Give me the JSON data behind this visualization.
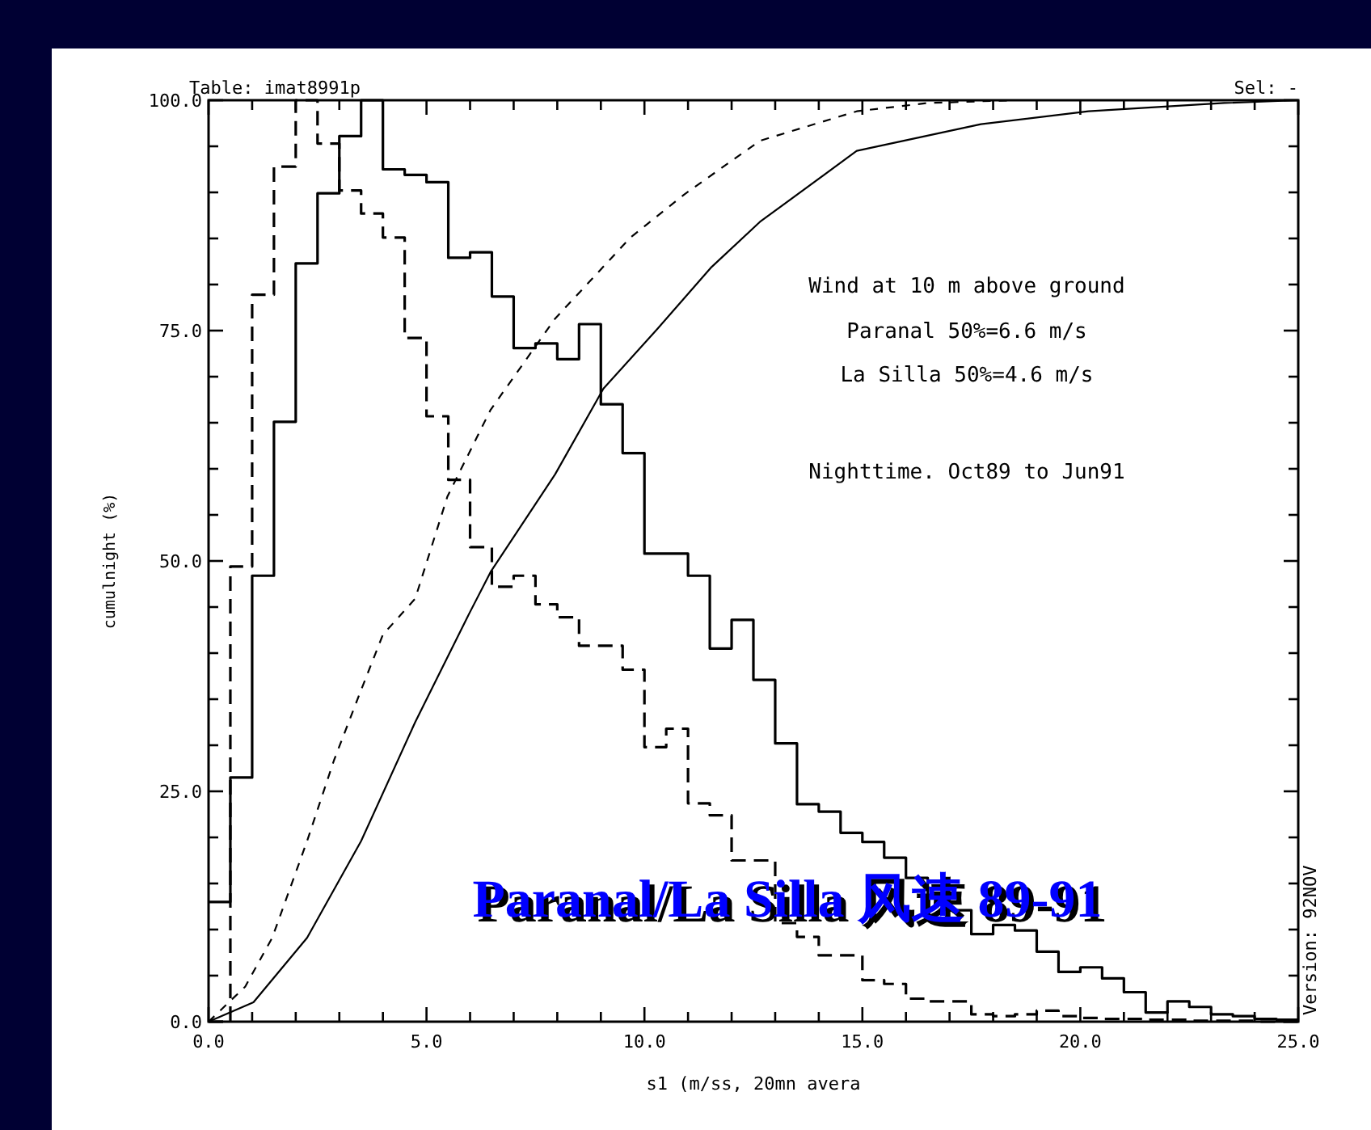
{
  "chart_data": {
    "type": "line",
    "title": "Paranal/La Silla 风速 89-91",
    "xlabel": "s1 (m/ss, 20mn avera",
    "ylabel": "cumulnight (%)",
    "annotations": [
      "Table: imat8991p",
      "Sel: -",
      "Wind at 10 m above ground",
      "Paranal 50%=6.6 m/s",
      "La Silla 50%=4.6 m/s",
      "Nighttime. Oct89 to Jun91",
      "Version: 92NOV"
    ],
    "series": [
      {
        "type": "step",
        "color": "#000000",
        "line_style": "solid",
        "x": [
          0,
          0.5,
          1,
          1.5,
          2,
          2.5,
          3,
          3.5,
          4,
          4.5,
          5,
          5.5,
          6,
          6.5,
          7,
          7.5,
          8,
          8.5,
          9,
          9.5,
          10,
          10.5,
          11,
          11.5,
          12,
          12.5,
          13,
          13.5,
          14,
          14.5,
          15,
          15.5,
          16,
          16.5,
          17,
          17.5,
          18,
          18.5,
          19,
          19.5,
          20,
          20.5,
          21,
          21.5,
          22,
          22.5,
          23,
          23.5,
          24,
          24.5,
          25
        ],
        "values": [
          13,
          26.5,
          48.4,
          65.1,
          82.3,
          89.9,
          96.1,
          100,
          92.5,
          91.9,
          91.1,
          82.9,
          83.5,
          78.7,
          73.1,
          73.6,
          71.9,
          75.7,
          67.0,
          61.7,
          50.8,
          50.8,
          48.4,
          40.5,
          43.6,
          37.1,
          30.2,
          23.6,
          22.8,
          20.5,
          19.5,
          17.8,
          15.6,
          13.7,
          12.1,
          9.5,
          10.5,
          9.9,
          7.6,
          5.4,
          5.9,
          4.7,
          3.2,
          1.0,
          2.2,
          1.6,
          0.8,
          0.6,
          0.3,
          0.2,
          0.2
        ]
      },
      {
        "type": "step",
        "color": "#000000",
        "line_style": "dashed",
        "x": [
          0,
          0.5,
          1,
          1.5,
          2,
          2.5,
          3,
          3.5,
          4,
          4.5,
          5,
          5.5,
          6,
          6.5,
          7,
          7.5,
          8,
          8.5,
          9,
          9.5,
          10,
          10.5,
          11,
          11.5,
          12,
          12.5,
          13,
          13.5,
          14,
          14.5,
          15,
          15.5,
          16,
          16.5,
          17,
          17.5,
          18,
          18.5,
          19,
          19.5,
          20,
          20.5,
          21,
          21.5,
          22,
          22.5,
          23,
          23.5,
          24,
          24.5,
          25
        ],
        "values": [
          0,
          49.4,
          78.9,
          92.8,
          100,
          95.3,
          90.2,
          87.7,
          85.1,
          74.2,
          65.7,
          58.8,
          51.5,
          47.2,
          48.4,
          45.3,
          43.9,
          40.8,
          40.8,
          38.2,
          29.8,
          31.8,
          23.7,
          22.4,
          17.5,
          17.5,
          10.7,
          9.2,
          7.2,
          7.2,
          4.5,
          4.1,
          2.5,
          2.2,
          2.2,
          0.8,
          0.6,
          0.8,
          1.2,
          0.6,
          0.4,
          0.3,
          0.3,
          0.2,
          0.2,
          0.1,
          0.1,
          0.1,
          0,
          0,
          0
        ]
      },
      {
        "color": "#000000",
        "line_style": "solid",
        "x": [
          0,
          1.03,
          2.26,
          3.5,
          4.74,
          5.97,
          6.47,
          7.95,
          9.06,
          10.3,
          11.54,
          12.65,
          14.87,
          17.72,
          20.19,
          23.3,
          25
        ],
        "values": [
          0,
          2.1,
          9.1,
          19.6,
          32.5,
          44.2,
          48.8,
          59.4,
          68.7,
          75.2,
          81.9,
          86.8,
          94.5,
          97.4,
          98.8,
          99.7,
          100
        ]
      },
      {
        "color": "#000000",
        "line_style": "dashed",
        "x": [
          0,
          0.84,
          1.46,
          2.26,
          2.88,
          3.5,
          4.0,
          4.74,
          5.48,
          6.47,
          7.95,
          9.68,
          10.92,
          12.65,
          14.87,
          16.5,
          18.5,
          25
        ],
        "values": [
          0,
          3.8,
          9.1,
          19.6,
          28.4,
          36,
          42,
          45.9,
          57.0,
          66.4,
          76.3,
          85.1,
          89.8,
          95.6,
          98.8,
          99.7,
          100,
          100
        ]
      }
    ],
    "xlim": [
      0,
      25
    ],
    "ylim": [
      0,
      100
    ],
    "xticks": [
      {
        "value": 0,
        "label": "0.0"
      },
      {
        "value": 1,
        "label": null
      },
      {
        "value": 2,
        "label": null
      },
      {
        "value": 3,
        "label": null
      },
      {
        "value": 4,
        "label": null
      },
      {
        "value": 5,
        "label": "5.0"
      },
      {
        "value": 6,
        "label": null
      },
      {
        "value": 7,
        "label": null
      },
      {
        "value": 8,
        "label": null
      },
      {
        "value": 9,
        "label": null
      },
      {
        "value": 10,
        "label": "10.0"
      },
      {
        "value": 11,
        "label": null
      },
      {
        "value": 12,
        "label": null
      },
      {
        "value": 13,
        "label": null
      },
      {
        "value": 14,
        "label": null
      },
      {
        "value": 15,
        "label": "15.0"
      },
      {
        "value": 16,
        "label": null
      },
      {
        "value": 17,
        "label": null
      },
      {
        "value": 18,
        "label": null
      },
      {
        "value": 19,
        "label": null
      },
      {
        "value": 20,
        "label": "20.0"
      },
      {
        "value": 21,
        "label": null
      },
      {
        "value": 22,
        "label": null
      },
      {
        "value": 23,
        "label": null
      },
      {
        "value": 24,
        "label": null
      },
      {
        "value": 25,
        "label": "25.0"
      }
    ],
    "yticks": [
      {
        "value": 0,
        "label": "0.0"
      },
      {
        "value": 5,
        "label": null
      },
      {
        "value": 10,
        "label": null
      },
      {
        "value": 15,
        "label": null
      },
      {
        "value": 20,
        "label": null
      },
      {
        "value": 25,
        "label": "25.0"
      },
      {
        "value": 30,
        "label": null
      },
      {
        "value": 35,
        "label": null
      },
      {
        "value": 40,
        "label": null
      },
      {
        "value": 45,
        "label": null
      },
      {
        "value": 50,
        "label": "50.0"
      },
      {
        "value": 55,
        "label": null
      },
      {
        "value": 60,
        "label": null
      },
      {
        "value": 65,
        "label": null
      },
      {
        "value": 70,
        "label": null
      },
      {
        "value": 75,
        "label": "75.0"
      },
      {
        "value": 80,
        "label": null
      },
      {
        "value": 85,
        "label": null
      },
      {
        "value": 90,
        "label": null
      },
      {
        "value": 95,
        "label": null
      },
      {
        "value": 100,
        "label": "100.0"
      }
    ],
    "grid": false
  }
}
